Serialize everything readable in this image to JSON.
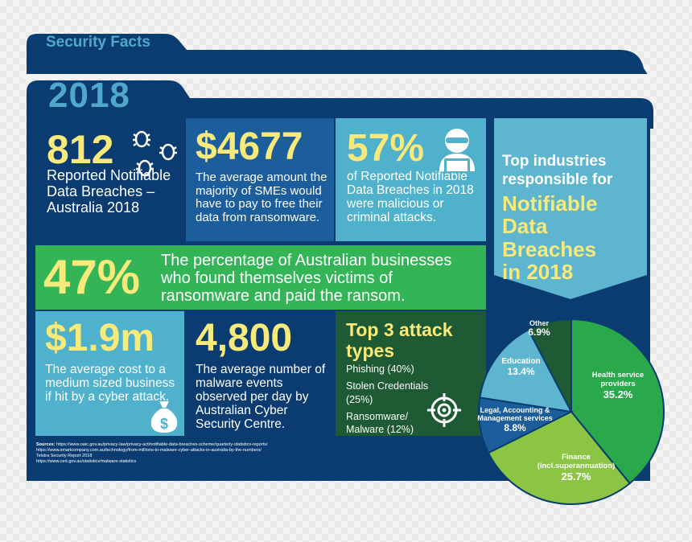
{
  "tab_title": "Security Facts",
  "year": "2018",
  "stats": {
    "breaches": {
      "value": "812",
      "text": "Reported Notifiable Data Breaches – Australia 2018"
    },
    "ransom_avg": {
      "value": "$4677",
      "text": "The average amount the majority of SMEs would have to pay to free their data from ransomware."
    },
    "malicious": {
      "value": "57%",
      "text": "of Reported Notifiable Data Breaches in 2018 were malicious or criminal attacks."
    },
    "paid_ransom": {
      "value": "47%",
      "text": "The percentage of Australian businesses who found themselves victims of ransomware and paid the ransom."
    },
    "cost": {
      "value": "$1.9m",
      "text": "The average cost to a medium sized business if hit by a cyber attack."
    },
    "malware_events": {
      "value": "4,800",
      "text": "The average number of malware events observed per day by Australian Cyber Security Centre."
    }
  },
  "attack_types": {
    "title": "Top 3 attack types",
    "items": [
      "Phishing (40%)",
      "Stolen Credentials (25%)",
      "Ransomware/ Malware (12%)"
    ]
  },
  "banner": {
    "line1": "Top industries responsible for",
    "line2": "Notifiable Data Breaches",
    "line3": "in 2018"
  },
  "sources": {
    "label": "Sources:",
    "lines": [
      "https://www.oaic.gov.au/privacy-law/privacy-act/notifiable-data-breaches-scheme/quarterly-statistics-reports/",
      "https://www.smartcompany.com.au/technology/from-millions-to-malware-cyber-attacks-in-australia-by-the-numbers/",
      "Telstra Security Report 2018",
      "https://www.cert.gov.au/statistics/malware-statistics"
    ]
  },
  "colors": {
    "navy": "#0a3c71",
    "mid_blue": "#1c5d9c",
    "light_blue": "#4fb1cb",
    "green": "#33b557",
    "dark_green": "#1e5a33",
    "yellow": "#f7e97a"
  },
  "icons": [
    "bug-icon",
    "hacker-laptop-icon",
    "money-bag-icon",
    "target-icon"
  ],
  "chart_data": {
    "type": "pie",
    "slices": [
      {
        "label": "Health service providers",
        "value": 35.2,
        "value_label": "35.2%",
        "color": "#29a94b"
      },
      {
        "label": "Finance (incl.superannuation)",
        "value": 25.7,
        "value_label": "25.7%",
        "color": "#8cc544"
      },
      {
        "label": "Legal, Accounting & Management services",
        "value": 8.8,
        "value_label": "8.8%",
        "color": "#1c5d9c"
      },
      {
        "label": "Education",
        "value": 13.4,
        "value_label": "13.4%",
        "color": "#5db5cf"
      },
      {
        "label": "Other",
        "value": 6.9,
        "value_label": "6.9%",
        "color": "#1e5a33"
      }
    ]
  }
}
